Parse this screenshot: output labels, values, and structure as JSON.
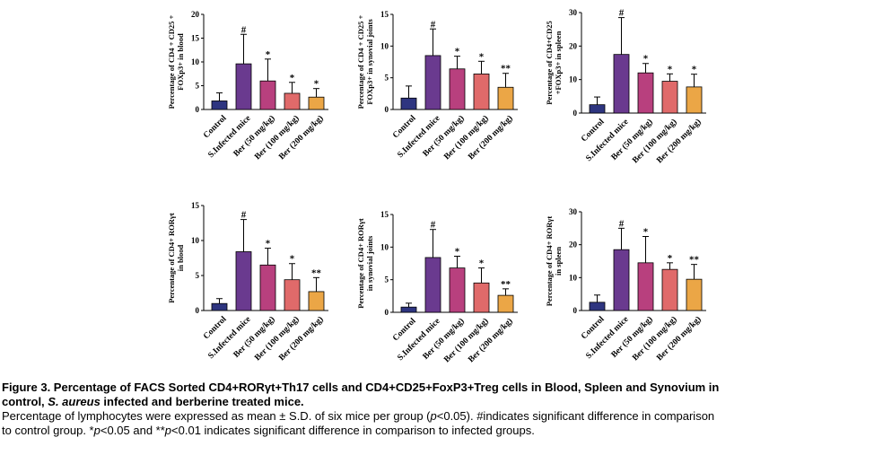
{
  "chart_data": [
    {
      "type": "bar",
      "ylabel_lines": [
        "Percentage of CD4 + CD25 +",
        "FOXp3+  in blood"
      ],
      "categories": [
        "Control",
        "S.Infected mice",
        "Ber (50 mg/kg)",
        "Ber (100 mg/kg)",
        "Ber (200 mg/kg)"
      ],
      "values": [
        1.8,
        9.6,
        6.0,
        3.4,
        2.6
      ],
      "errors": [
        1.7,
        6.2,
        4.6,
        2.3,
        1.8
      ],
      "significance": [
        "",
        "#",
        "*",
        "*",
        "*"
      ],
      "ylim": [
        0,
        20
      ],
      "yticks": [
        0,
        5,
        10,
        15,
        20
      ],
      "colors": [
        "#2e3580",
        "#6a3a8f",
        "#b8407e",
        "#e06a6a",
        "#eba646"
      ]
    },
    {
      "type": "bar",
      "ylabel_lines": [
        "Percentage of CD4 + CD25 +",
        "FOXp3+  in synovial joints"
      ],
      "categories": [
        "Control",
        "S.Infected mice",
        "Ber (50 mg/kg)",
        "Ber (100 mg/kg)",
        "Ber (200 mg/kg)"
      ],
      "values": [
        1.8,
        8.5,
        6.4,
        5.6,
        3.5
      ],
      "errors": [
        1.9,
        4.2,
        2.0,
        2.0,
        2.2
      ],
      "significance": [
        "",
        "#",
        "*",
        "*",
        "**"
      ],
      "ylim": [
        0,
        15
      ],
      "yticks": [
        0,
        5,
        10,
        15
      ],
      "colors": [
        "#2e3580",
        "#6a3a8f",
        "#b8407e",
        "#e06a6a",
        "#eba646"
      ]
    },
    {
      "type": "bar",
      "ylabel_lines": [
        "Percentage of CD4+CD25",
        "+FOXp3+ in spleen"
      ],
      "categories": [
        "Control",
        "S.Infected mice",
        "Ber (50 mg/kg)",
        "Ber (100 mg/kg)",
        "Ber (200 mg/kg)"
      ],
      "values": [
        2.5,
        17.5,
        12.0,
        9.5,
        7.8
      ],
      "errors": [
        2.3,
        11.0,
        2.8,
        2.2,
        3.8
      ],
      "significance": [
        "",
        "#",
        "*",
        "*",
        "*"
      ],
      "ylim": [
        0,
        30
      ],
      "yticks": [
        0,
        10,
        20,
        30
      ],
      "colors": [
        "#2e3580",
        "#6a3a8f",
        "#b8407e",
        "#e06a6a",
        "#eba646"
      ]
    },
    {
      "type": "bar",
      "ylabel_lines": [
        "Percentage of CD4+ RORγt",
        "in blood"
      ],
      "categories": [
        "Control",
        "S.Infected mice",
        "Ber (50 mg/kg)",
        "Ber (100 mg/kg)",
        "Ber (200 mg/kg)"
      ],
      "values": [
        1.0,
        8.4,
        6.5,
        4.4,
        2.7
      ],
      "errors": [
        0.7,
        4.6,
        2.4,
        2.3,
        2.0
      ],
      "significance": [
        "",
        "#",
        "*",
        "*",
        "**"
      ],
      "ylim": [
        0,
        15
      ],
      "yticks": [
        0,
        5,
        10,
        15
      ],
      "colors": [
        "#2e3580",
        "#6a3a8f",
        "#b8407e",
        "#e06a6a",
        "#eba646"
      ]
    },
    {
      "type": "bar",
      "ylabel_lines": [
        "Percentage of CD4+ RORγt",
        "in synovial joints"
      ],
      "categories": [
        "Control",
        "S.Infected mice",
        "Ber (50 mg/kg)",
        "Ber (100 mg/kg)",
        "Ber (200 mg/kg)"
      ],
      "values": [
        0.8,
        8.4,
        6.8,
        4.5,
        2.6
      ],
      "errors": [
        0.6,
        4.3,
        1.8,
        2.3,
        1.0
      ],
      "significance": [
        "",
        "#",
        "*",
        "*",
        "**"
      ],
      "ylim": [
        0,
        15
      ],
      "yticks": [
        0,
        5,
        10,
        15
      ],
      "colors": [
        "#2e3580",
        "#6a3a8f",
        "#b8407e",
        "#e06a6a",
        "#eba646"
      ]
    },
    {
      "type": "bar",
      "ylabel_lines": [
        "Percentage of CD4+ RORγt",
        "in spleen"
      ],
      "categories": [
        "Control",
        "S.Infected mice",
        "Ber (50 mg/kg)",
        "Ber (100 mg/kg)",
        "Ber (200 mg/kg)"
      ],
      "values": [
        2.5,
        18.5,
        14.5,
        12.5,
        9.5
      ],
      "errors": [
        2.2,
        6.5,
        8.0,
        2.0,
        4.5
      ],
      "significance": [
        "",
        "#",
        "*",
        "*",
        "**"
      ],
      "ylim": [
        0,
        30
      ],
      "yticks": [
        0,
        10,
        20,
        30
      ],
      "colors": [
        "#2e3580",
        "#6a3a8f",
        "#b8407e",
        "#e06a6a",
        "#eba646"
      ]
    }
  ],
  "caption": {
    "title_line1": "Figure 3. Percentage of FACS Sorted CD4+RORγt+Th17 cells and CD4+CD25+FoxP3+Treg cells in Blood, Spleen and Synovium in",
    "title_line2_a": "control, ",
    "title_line2_italic": "S. aureus",
    "title_line2_b": " infected and berberine treated mice.",
    "body_line1_a": "Percentage of lymphocytes were expressed as mean ± S.D. of six mice per group (",
    "body_line1_p": "p",
    "body_line1_b": "<0.05). #indicates significant difference in comparison",
    "body_line2_a": "to control group. *",
    "body_line2_p1": "p",
    "body_line2_b": "<0.05 and **",
    "body_line2_p2": "p",
    "body_line2_c": "<0.01 indicates significant difference in comparison to infected groups."
  }
}
